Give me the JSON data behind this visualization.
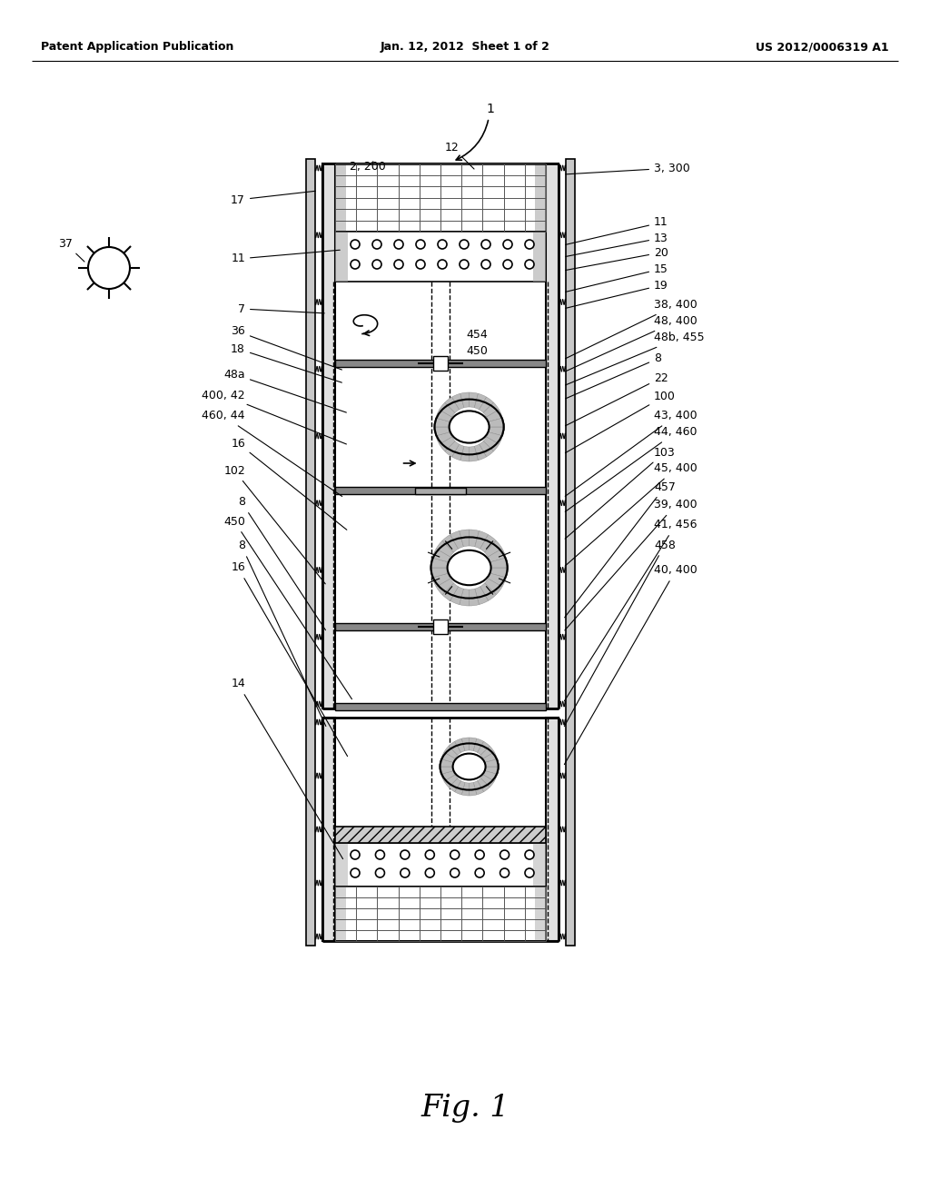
{
  "header_left": "Patent Application Publication",
  "header_mid": "Jan. 12, 2012  Sheet 1 of 2",
  "header_right": "US 2012/0006319 A1",
  "figure_label": "Fig. 1",
  "background": "#ffffff"
}
